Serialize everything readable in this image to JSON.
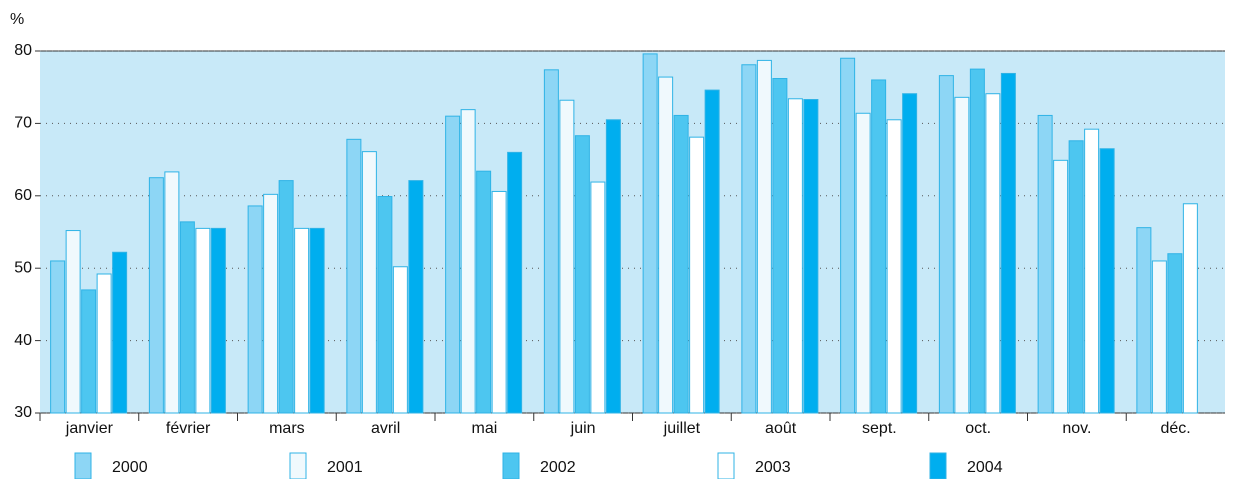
{
  "chart_data": {
    "type": "bar",
    "y_label": "%",
    "categories": [
      "janvier",
      "février",
      "mars",
      "avril",
      "mai",
      "juin",
      "juillet",
      "août",
      "sept.",
      "oct.",
      "nov.",
      "déc."
    ],
    "series": [
      {
        "name": "2000",
        "color": "#8dd6f5",
        "values": [
          51,
          62.5,
          58.6,
          67.8,
          71,
          77.4,
          79.6,
          78.1,
          79,
          76.6,
          71.1,
          55.6
        ]
      },
      {
        "name": "2001",
        "color": "#f0f9fd",
        "values": [
          55.2,
          63.3,
          60.2,
          66.1,
          71.9,
          73.2,
          76.4,
          78.7,
          71.4,
          73.6,
          64.9,
          51
        ]
      },
      {
        "name": "2002",
        "color": "#4dc6f0",
        "values": [
          47,
          56.4,
          62.1,
          59.9,
          63.4,
          68.3,
          71.1,
          76.2,
          76,
          77.5,
          67.6,
          52
        ]
      },
      {
        "name": "2003",
        "color": "#ffffff",
        "values": [
          49.2,
          55.5,
          55.5,
          50.2,
          60.6,
          61.9,
          68.1,
          73.4,
          70.5,
          74.1,
          69.2,
          58.9
        ]
      },
      {
        "name": "2004",
        "color": "#00aeef",
        "values": [
          52.2,
          55.5,
          55.5,
          62.1,
          66,
          70.5,
          74.6,
          73.3,
          74.1,
          76.9,
          66.5,
          null
        ]
      }
    ],
    "ylim": [
      30,
      80
    ],
    "yticks": [
      30,
      40,
      50,
      60,
      70,
      80
    ],
    "grid": true
  }
}
